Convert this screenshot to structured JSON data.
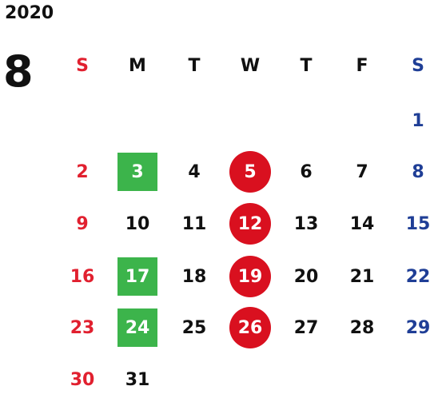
{
  "year": "2020",
  "month": "8",
  "weekdays": [
    "S",
    "M",
    "T",
    "W",
    "T",
    "F",
    "S"
  ],
  "colors": {
    "sunday": "#e1202f",
    "saturday": "#1f3e96",
    "green_mark": "#3cb44b",
    "red_mark": "#d9101f"
  },
  "weeks": [
    [
      null,
      null,
      null,
      null,
      null,
      null,
      {
        "d": "1"
      }
    ],
    [
      {
        "d": "2"
      },
      {
        "d": "3",
        "mark": "green"
      },
      {
        "d": "4"
      },
      {
        "d": "5",
        "mark": "red"
      },
      {
        "d": "6"
      },
      {
        "d": "7"
      },
      {
        "d": "8"
      }
    ],
    [
      {
        "d": "9"
      },
      {
        "d": "10"
      },
      {
        "d": "11"
      },
      {
        "d": "12",
        "mark": "red"
      },
      {
        "d": "13"
      },
      {
        "d": "14"
      },
      {
        "d": "15"
      }
    ],
    [
      {
        "d": "16"
      },
      {
        "d": "17",
        "mark": "green"
      },
      {
        "d": "18"
      },
      {
        "d": "19",
        "mark": "red"
      },
      {
        "d": "20"
      },
      {
        "d": "21"
      },
      {
        "d": "22"
      }
    ],
    [
      {
        "d": "23"
      },
      {
        "d": "24",
        "mark": "green"
      },
      {
        "d": "25"
      },
      {
        "d": "26",
        "mark": "red"
      },
      {
        "d": "27"
      },
      {
        "d": "28"
      },
      {
        "d": "29"
      }
    ],
    [
      {
        "d": "30"
      },
      {
        "d": "31"
      },
      null,
      null,
      null,
      null,
      null
    ]
  ]
}
